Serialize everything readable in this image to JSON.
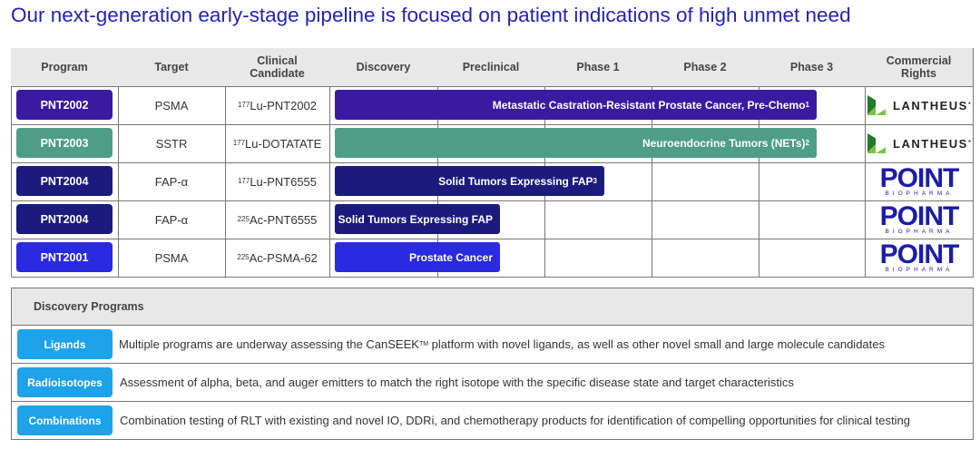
{
  "title": "Our next-generation early-stage pipeline is focused on patient indications of high unmet need",
  "pipeline": {
    "headers": [
      "Program",
      "Target",
      "Clinical Candidate",
      "Discovery",
      "Preclinical",
      "Phase 1",
      "Phase 2",
      "Phase 3",
      "Commercial Rights"
    ],
    "rows": [
      {
        "program": "PNT2002",
        "target": "PSMA",
        "candidate": {
          "mass": "177",
          "name": "Lu-PNT2002"
        },
        "indication": {
          "text": "Metastatic Castration-Resistant Prostate Cancer, Pre-Chemo",
          "note": "1"
        },
        "rights": {
          "name": "LANTHEUS",
          "mark": "*"
        }
      },
      {
        "program": "PNT2003",
        "target": "SSTR",
        "candidate": {
          "mass": "177",
          "name": "Lu-DOTATATE"
        },
        "indication": {
          "text": "Neuroendocrine Tumors (NETs)",
          "note": "2"
        },
        "rights": {
          "name": "LANTHEUS",
          "mark": "*"
        }
      },
      {
        "program": "PNT2004",
        "target": "FAP-α",
        "candidate": {
          "mass": "177",
          "name": "Lu-PNT6555"
        },
        "indication": {
          "text": "Solid Tumors Expressing FAP",
          "note": "3"
        },
        "rights": {
          "name": "POINT",
          "tagline": "BIOPHARMA"
        }
      },
      {
        "program": "PNT2004",
        "target": "FAP-α",
        "candidate": {
          "mass": "225",
          "name": "Ac-PNT6555"
        },
        "indication": {
          "text": "Solid Tumors Expressing FAP"
        },
        "rights": {
          "name": "POINT",
          "tagline": "BIOPHARMA"
        }
      },
      {
        "program": "PNT2001",
        "target": "PSMA",
        "candidate": {
          "mass": "225",
          "name": "Ac-PSMA-62"
        },
        "indication": {
          "text": "Prostate Cancer"
        },
        "rights": {
          "name": "POINT",
          "tagline": "BIOPHARMA"
        }
      }
    ]
  },
  "discovery": {
    "title": "Discovery Programs",
    "rows": [
      {
        "name": "Ligands",
        "description": {
          "before": "Multiple programs are underway assessing the CanSEEK",
          "superscript": "TM",
          "after": " platform with novel ligands, as well as other novel small and large molecule candidates"
        }
      },
      {
        "name": "Radioisotopes",
        "description": {
          "before": "Assessment of alpha, beta, and auger emitters to match the right isotope with the specific disease state and target characteristics"
        }
      },
      {
        "name": "Combinations",
        "description": {
          "before": "Combination testing of RLT with existing and novel IO, DDRi, and chemotherapy products for identification of compelling opportunities for clinical testing"
        }
      }
    ]
  }
}
